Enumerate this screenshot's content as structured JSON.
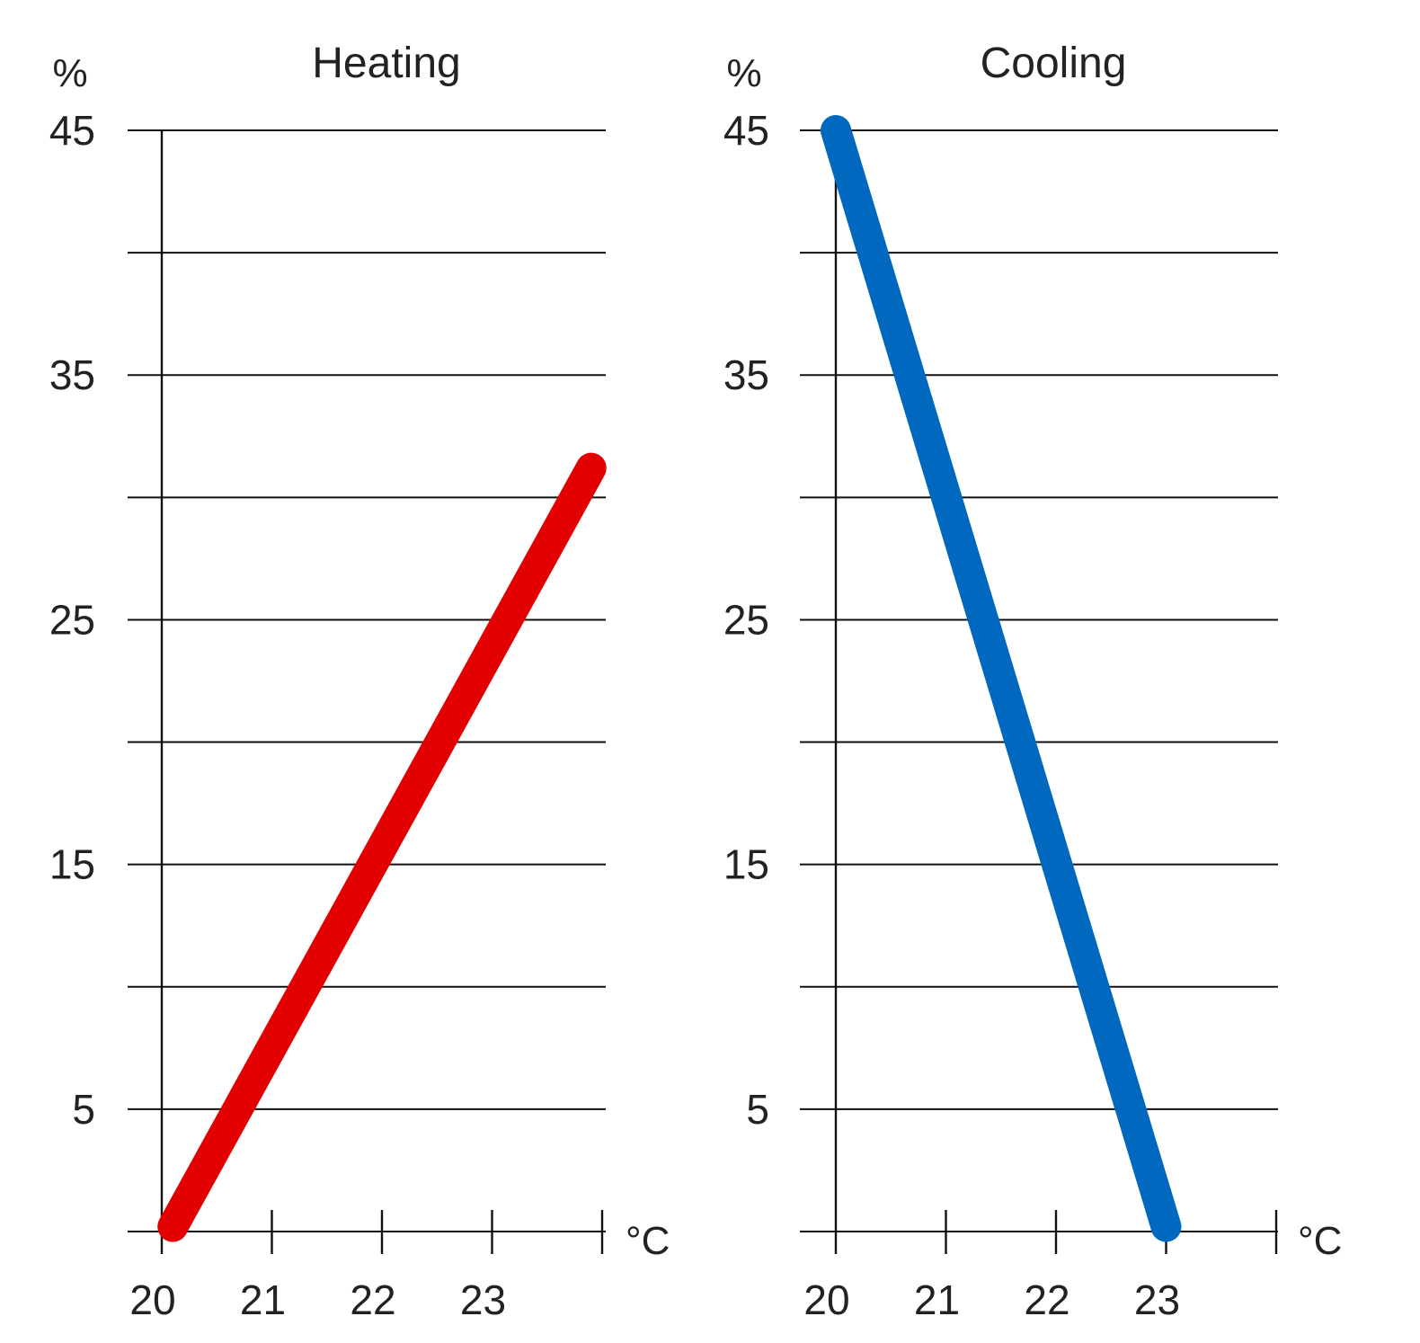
{
  "chart_data": [
    {
      "type": "line",
      "title": "Heating",
      "ylabel": "%",
      "xlabel": "°C",
      "x_ticks": [
        "20",
        "21",
        "22",
        "23"
      ],
      "y_ticks": [
        "45",
        "35",
        "25",
        "15",
        "5"
      ],
      "xlim": [
        20,
        24
      ],
      "ylim": [
        0,
        45
      ],
      "grid": true,
      "series": [
        {
          "x": [
            20.1,
            23.9
          ],
          "y": [
            0.2,
            31.2
          ],
          "color": "#e20000"
        }
      ]
    },
    {
      "type": "line",
      "title": "Cooling",
      "ylabel": "%",
      "xlabel": "°C",
      "x_ticks": [
        "20",
        "21",
        "22",
        "23"
      ],
      "y_ticks": [
        "45",
        "35",
        "25",
        "15",
        "5"
      ],
      "xlim": [
        20,
        24
      ],
      "ylim": [
        0,
        45
      ],
      "grid": true,
      "series": [
        {
          "x": [
            20.0,
            23.0
          ],
          "y": [
            45,
            0.2
          ],
          "color": "#0068be"
        }
      ]
    }
  ]
}
